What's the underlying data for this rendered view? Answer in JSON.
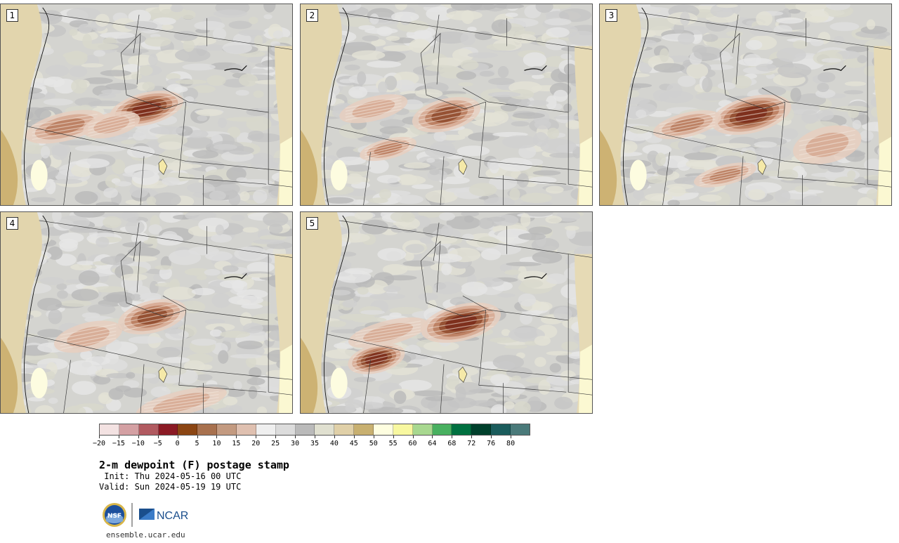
{
  "panels": [
    {
      "label": "1",
      "blobs": [
        [
          0.5,
          0.52,
          0.13,
          0.08,
          0.9
        ],
        [
          0.22,
          0.61,
          0.14,
          0.07,
          0.6
        ],
        [
          0.38,
          0.6,
          0.1,
          0.06,
          0.45
        ]
      ]
    },
    {
      "label": "2",
      "blobs": [
        [
          0.5,
          0.55,
          0.12,
          0.08,
          0.75
        ],
        [
          0.3,
          0.72,
          0.1,
          0.05,
          0.55
        ],
        [
          0.25,
          0.52,
          0.12,
          0.06,
          0.35
        ]
      ]
    },
    {
      "label": "3",
      "blobs": [
        [
          0.52,
          0.55,
          0.14,
          0.09,
          1.0
        ],
        [
          0.3,
          0.6,
          0.12,
          0.06,
          0.5
        ],
        [
          0.43,
          0.85,
          0.11,
          0.05,
          0.5
        ],
        [
          0.78,
          0.7,
          0.12,
          0.09,
          0.35
        ]
      ]
    },
    {
      "label": "4",
      "blobs": [
        [
          0.52,
          0.52,
          0.12,
          0.08,
          0.85
        ],
        [
          0.3,
          0.62,
          0.12,
          0.07,
          0.45
        ],
        [
          0.62,
          0.95,
          0.16,
          0.06,
          0.4
        ]
      ]
    },
    {
      "label": "5",
      "blobs": [
        [
          0.55,
          0.55,
          0.14,
          0.09,
          1.0
        ],
        [
          0.26,
          0.73,
          0.1,
          0.07,
          0.95
        ],
        [
          0.3,
          0.6,
          0.14,
          0.06,
          0.4
        ]
      ]
    }
  ],
  "colorbar": {
    "colors": [
      "#f3e2e2",
      "#d4a0a3",
      "#b15a60",
      "#8b1a24",
      "#8b4513",
      "#a8714e",
      "#c39a80",
      "#dfc0b0",
      "#efefef",
      "#dcdcdc",
      "#bababa",
      "#e0e0d0",
      "#e0d0a8",
      "#c8b070",
      "#fefee0",
      "#f8f8a0",
      "#a8d890",
      "#48b060",
      "#007040",
      "#00402c",
      "#1a5c5c",
      "#4a7a7a"
    ],
    "ticks": [
      "−20",
      "−15",
      "−10",
      "−5",
      "0",
      "5",
      "10",
      "15",
      "20",
      "25",
      "30",
      "35",
      "40",
      "45",
      "50",
      "55",
      "60",
      "64",
      "68",
      "72",
      "76",
      "80"
    ]
  },
  "title": "2-m dewpoint (F) postage stamp",
  "init": " Init: Thu 2024-05-16 00 UTC",
  "valid": "Valid: Sun 2024-05-19 19 UTC",
  "logos": {
    "nsf": "NSF",
    "ncar": "NCAR"
  },
  "site": "ensemble.ucar.edu"
}
